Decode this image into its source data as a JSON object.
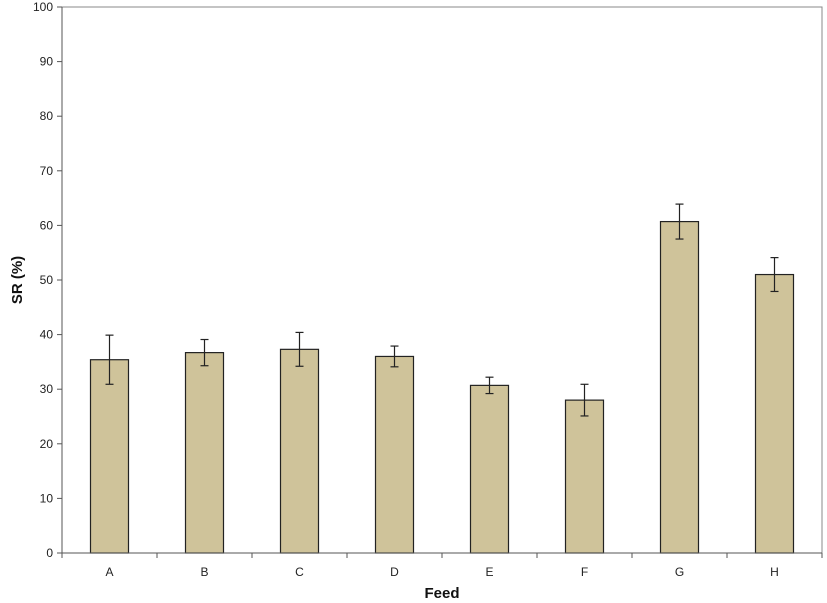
{
  "colors": {
    "bar_fill": "#cfc39a",
    "bar_stroke": "#222222"
  },
  "chart_data": {
    "type": "bar",
    "title": "",
    "xlabel": "Feed",
    "ylabel": "SR (%)",
    "ylim": [
      0,
      100
    ],
    "yticks": [
      0,
      10,
      20,
      30,
      40,
      50,
      60,
      70,
      80,
      90,
      100
    ],
    "grid": false,
    "legend": "none",
    "categories": [
      "A",
      "B",
      "C",
      "D",
      "E",
      "F",
      "G",
      "H"
    ],
    "values": [
      35.4,
      36.7,
      37.3,
      36.0,
      30.7,
      28.0,
      60.7,
      51.0
    ],
    "error": [
      4.5,
      2.4,
      3.1,
      1.9,
      1.5,
      2.9,
      3.2,
      3.1
    ]
  }
}
